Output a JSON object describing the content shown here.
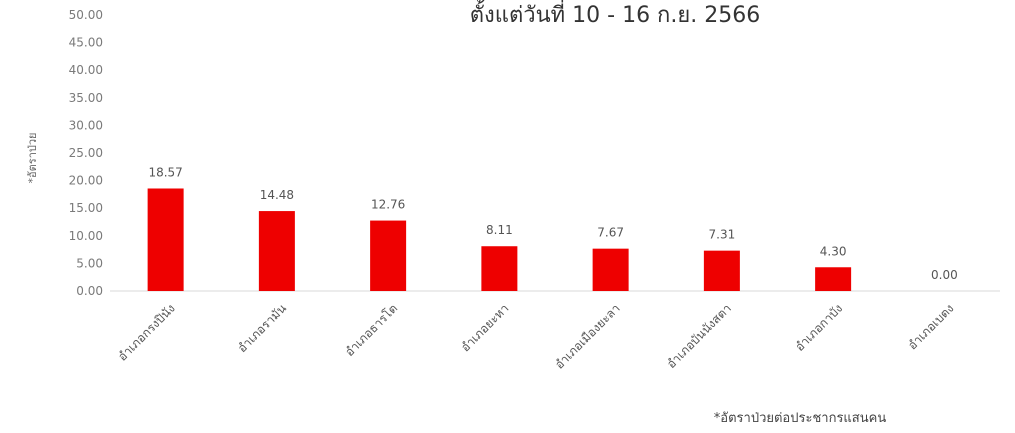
{
  "chart_data": {
    "type": "bar",
    "title": "ตั้งแต่วันที่ 10 - 16 ก.ย. 2566",
    "xlabel": "",
    "ylabel": "*อัตราป่วย",
    "footnote": "*อัตราป่วยต่อประชากรแสนคน",
    "ylim": [
      0,
      50
    ],
    "y_ticks": [
      "50.00",
      "45.00",
      "40.00",
      "35.00",
      "30.00",
      "25.00",
      "20.00",
      "15.00",
      "10.00",
      "5.00",
      "0.00"
    ],
    "categories": [
      "อำเภอกรงปินัง",
      "อำเภอรามัน",
      "อำเภอธารโต",
      "อำเภอยะหา",
      "อำเภอเมืองยะลา",
      "อำเภอบันนังสตา",
      "อำเภอกาบัง",
      "อำเภอเบตง"
    ],
    "values": [
      18.57,
      14.48,
      12.76,
      8.11,
      7.67,
      7.31,
      4.3,
      0.0
    ],
    "data_labels": [
      "18.57",
      "14.48",
      "12.76",
      "8.11",
      "7.67",
      "7.31",
      "4.30",
      "0.00"
    ],
    "bar_color": "#ee0000",
    "grid": false,
    "legend": "none"
  }
}
